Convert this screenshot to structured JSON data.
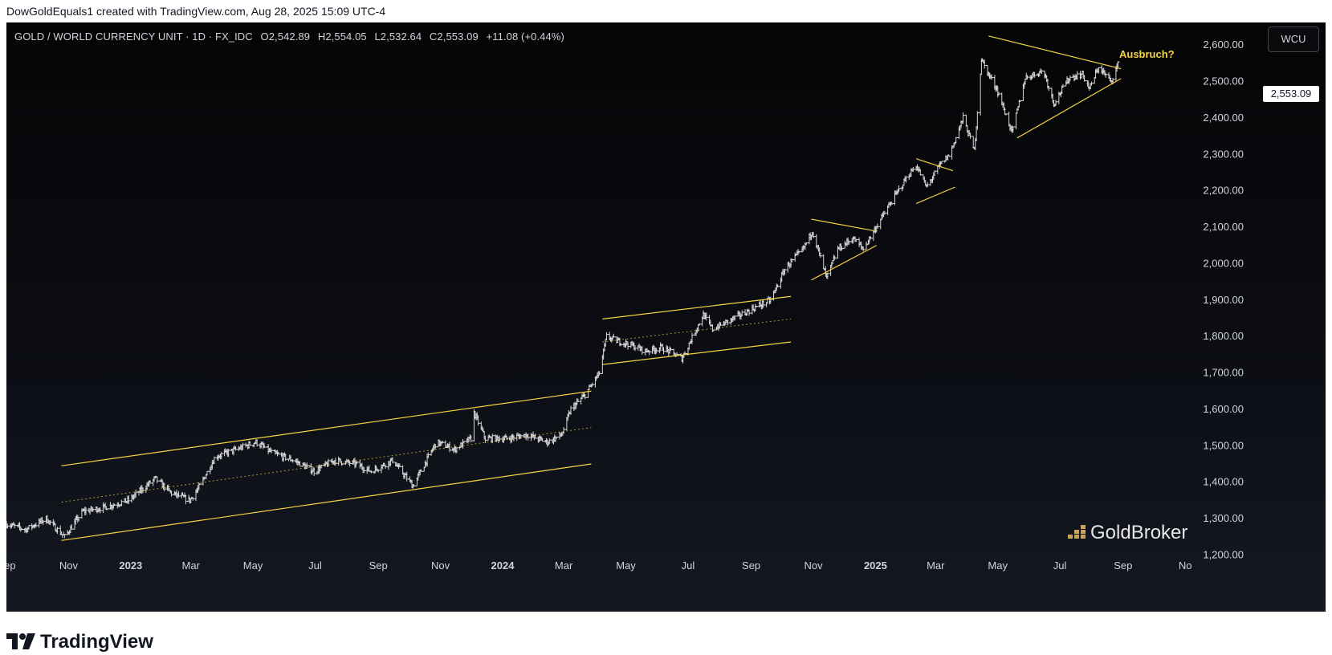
{
  "credit": "DowGoldEquals1 created with TradingView.com, Aug 28, 2025 15:09 UTC-4",
  "legend": {
    "symbol": "GOLD / WORLD CURRENCY UNIT · 1D · FX_IDC",
    "open": "O2,542.89",
    "high": "H2,554.05",
    "low": "L2,532.64",
    "close": "C2,553.09",
    "change": "+11.08 (+0.44%)"
  },
  "currency_button": "WCU",
  "last_price_label": "2,553.09",
  "annotation": "Ausbruch?",
  "watermark": "GoldBroker",
  "footer_logo": "TradingView",
  "colors": {
    "background": "#0b0d13",
    "candles": "#d8d8d8",
    "pattern_lines": "#f5d442",
    "annotation": "#f5d442",
    "axis_text": "#d1d4dc",
    "goldbroker_icon": "#c9a45a"
  },
  "icons": [
    "goldbroker-logo-icon",
    "tradingview-logo-icon"
  ],
  "chart_data": {
    "type": "line",
    "title": "GOLD / WORLD CURRENCY UNIT · 1D · FX_IDC",
    "y_ticks": [
      1200,
      1300,
      1400,
      1500,
      1600,
      1700,
      1800,
      1900,
      2000,
      2100,
      2200,
      2300,
      2400,
      2500,
      2600
    ],
    "y_tick_labels": [
      "1,200.00",
      "1,300.00",
      "1,400.00",
      "1,500.00",
      "1,600.00",
      "1,700.00",
      "1,800.00",
      "1,900.00",
      "2,000.00",
      "2,100.00",
      "2,200.00",
      "2,300.00",
      "2,400.00",
      "2,500.00",
      "2,600.00"
    ],
    "ylim": [
      1190,
      2640
    ],
    "x_ticks": [
      {
        "label": "Sep",
        "date": "2022-09-01"
      },
      {
        "label": "Nov",
        "date": "2022-11-01"
      },
      {
        "label": "2023",
        "date": "2023-01-01"
      },
      {
        "label": "Mar",
        "date": "2023-03-01"
      },
      {
        "label": "May",
        "date": "2023-05-01"
      },
      {
        "label": "Jul",
        "date": "2023-07-01"
      },
      {
        "label": "Sep",
        "date": "2023-09-01"
      },
      {
        "label": "Nov",
        "date": "2023-11-01"
      },
      {
        "label": "2024",
        "date": "2024-01-01"
      },
      {
        "label": "Mar",
        "date": "2024-03-01"
      },
      {
        "label": "May",
        "date": "2024-05-01"
      },
      {
        "label": "Jul",
        "date": "2024-07-01"
      },
      {
        "label": "Sep",
        "date": "2024-09-01"
      },
      {
        "label": "Nov",
        "date": "2024-11-01"
      },
      {
        "label": "2025",
        "date": "2025-01-01"
      },
      {
        "label": "Mar",
        "date": "2025-03-01"
      },
      {
        "label": "May",
        "date": "2025-05-01"
      },
      {
        "label": "Jul",
        "date": "2025-07-01"
      },
      {
        "label": "Sep",
        "date": "2025-09-01"
      },
      {
        "label": "No",
        "date": "2025-11-01"
      }
    ],
    "xlim": [
      "2022-09-01",
      "2025-11-04"
    ],
    "price_series": {
      "x": [
        "2022-09-01",
        "2022-09-20",
        "2022-10-10",
        "2022-10-28",
        "2022-11-15",
        "2022-12-05",
        "2022-12-30",
        "2023-01-25",
        "2023-02-10",
        "2023-02-28",
        "2023-03-10",
        "2023-03-25",
        "2023-04-15",
        "2023-05-04",
        "2023-05-20",
        "2023-06-10",
        "2023-06-30",
        "2023-07-20",
        "2023-08-10",
        "2023-08-25",
        "2023-09-15",
        "2023-10-05",
        "2023-10-28",
        "2023-11-15",
        "2023-12-01",
        "2023-12-04",
        "2023-12-15",
        "2024-01-05",
        "2024-01-25",
        "2024-02-14",
        "2024-02-28",
        "2024-03-08",
        "2024-03-22",
        "2024-04-05",
        "2024-04-12",
        "2024-04-20",
        "2024-05-03",
        "2024-05-20",
        "2024-06-05",
        "2024-06-25",
        "2024-07-16",
        "2024-07-25",
        "2024-08-15",
        "2024-09-05",
        "2024-09-20",
        "2024-10-05",
        "2024-10-22",
        "2024-10-31",
        "2024-11-14",
        "2024-11-25",
        "2024-12-10",
        "2024-12-20",
        "2025-01-10",
        "2025-01-30",
        "2025-02-10",
        "2025-02-20",
        "2025-03-05",
        "2025-03-15",
        "2025-03-28",
        "2025-04-08",
        "2025-04-15",
        "2025-04-22",
        "2025-04-30",
        "2025-05-15",
        "2025-05-28",
        "2025-06-15",
        "2025-06-25",
        "2025-07-10",
        "2025-07-23",
        "2025-07-30",
        "2025-08-08",
        "2025-08-20",
        "2025-08-28"
      ],
      "close": [
        1285,
        1270,
        1300,
        1250,
        1320,
        1330,
        1350,
        1410,
        1370,
        1350,
        1390,
        1470,
        1490,
        1510,
        1480,
        1460,
        1430,
        1460,
        1450,
        1430,
        1460,
        1390,
        1510,
        1490,
        1520,
        1590,
        1520,
        1520,
        1530,
        1510,
        1530,
        1600,
        1640,
        1700,
        1800,
        1790,
        1780,
        1760,
        1770,
        1740,
        1860,
        1820,
        1850,
        1880,
        1900,
        1990,
        2040,
        2090,
        1960,
        2040,
        2070,
        2040,
        2140,
        2230,
        2270,
        2210,
        2270,
        2300,
        2400,
        2310,
        2560,
        2520,
        2480,
        2360,
        2510,
        2530,
        2440,
        2510,
        2520,
        2480,
        2540,
        2500,
        2553
      ]
    },
    "patterns": [
      {
        "name": "channel-upper",
        "x": [
          "2022-10-25",
          "2024-03-28"
        ],
        "y": [
          1445,
          1650
        ]
      },
      {
        "name": "channel-middle",
        "x": [
          "2022-10-25",
          "2024-03-28"
        ],
        "y": [
          1345,
          1550
        ]
      },
      {
        "name": "channel-lower",
        "x": [
          "2022-10-25",
          "2024-03-28"
        ],
        "y": [
          1240,
          1450
        ]
      },
      {
        "name": "flag-upper",
        "x": [
          "2024-04-08",
          "2024-10-10"
        ],
        "y": [
          1848,
          1910
        ]
      },
      {
        "name": "flag-middle",
        "x": [
          "2024-04-08",
          "2024-10-10"
        ],
        "y": [
          1785,
          1848
        ]
      },
      {
        "name": "flag-lower",
        "x": [
          "2024-04-08",
          "2024-10-10"
        ],
        "y": [
          1723,
          1785
        ]
      },
      {
        "name": "triangle1-upper",
        "x": [
          "2024-10-30",
          "2024-12-31"
        ],
        "y": [
          2122,
          2090
        ]
      },
      {
        "name": "triangle1-lower",
        "x": [
          "2024-10-30",
          "2025-01-02"
        ],
        "y": [
          1955,
          2050
        ]
      },
      {
        "name": "triangle2-upper",
        "x": [
          "2025-02-10",
          "2025-03-18"
        ],
        "y": [
          2288,
          2255
        ]
      },
      {
        "name": "triangle2-lower",
        "x": [
          "2025-02-10",
          "2025-03-20"
        ],
        "y": [
          2165,
          2210
        ]
      },
      {
        "name": "triangle3-upper",
        "x": [
          "2025-04-22",
          "2025-08-30"
        ],
        "y": [
          2625,
          2535
        ]
      },
      {
        "name": "triangle3-lower",
        "x": [
          "2025-05-20",
          "2025-08-30"
        ],
        "y": [
          2345,
          2508
        ]
      }
    ]
  }
}
